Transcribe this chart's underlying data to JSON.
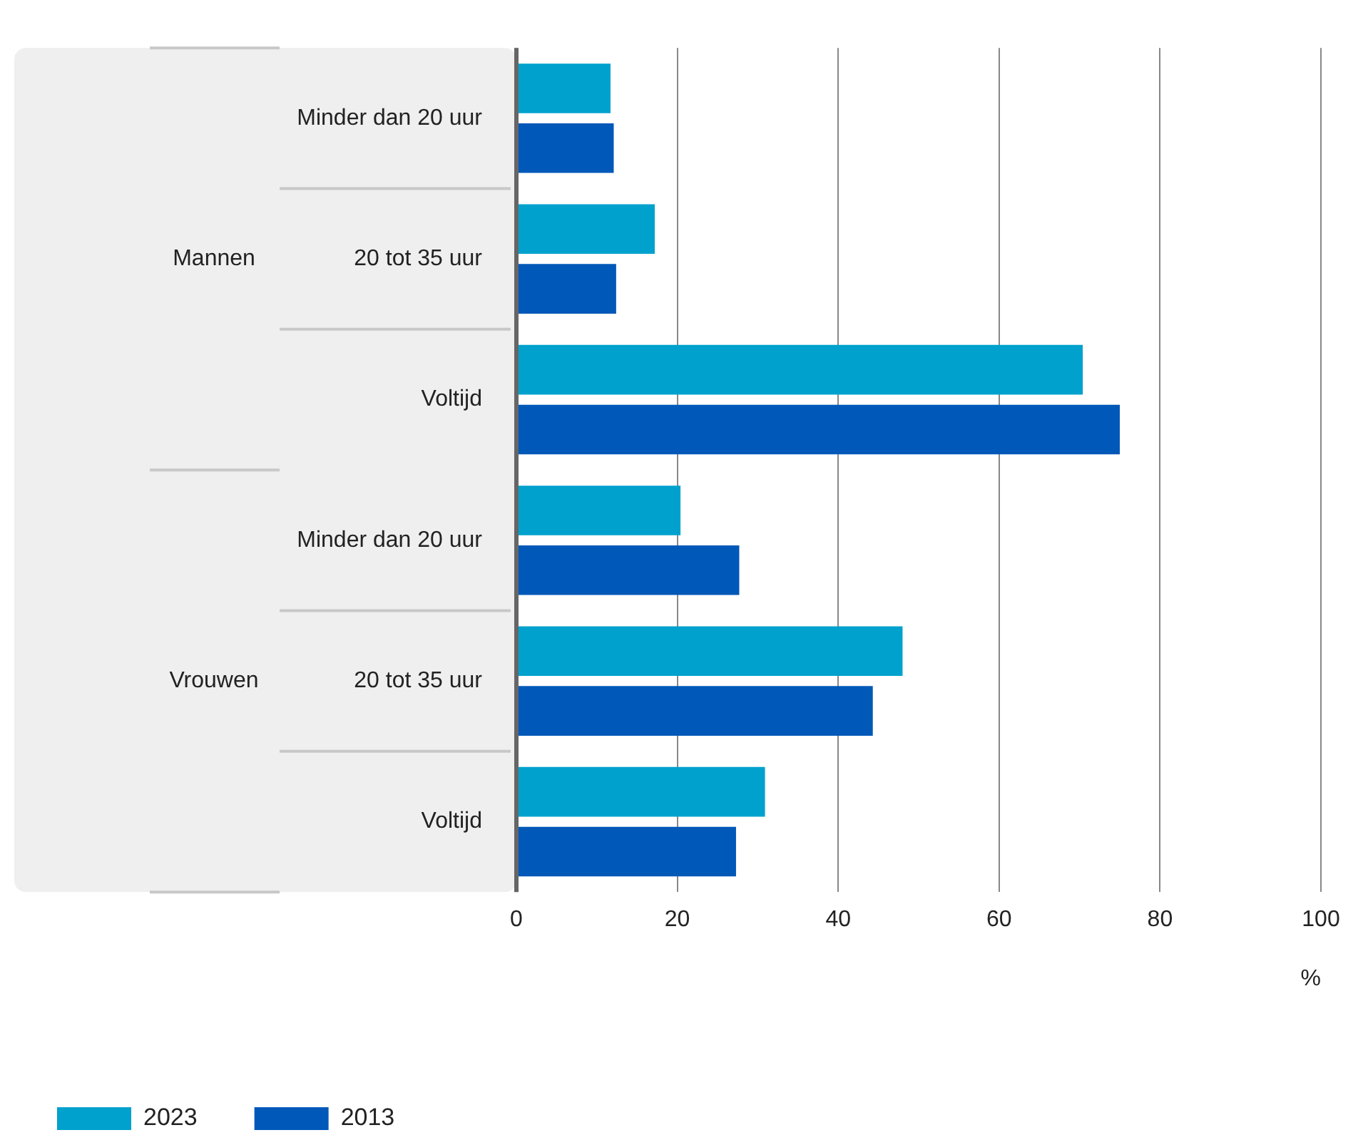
{
  "chart_data": {
    "type": "bar",
    "orientation": "horizontal",
    "categories": [
      "Minder dan 20 uur",
      "20 tot 35 uur",
      "Voltijd",
      "Minder dan 20 uur",
      "20 tot 35 uur",
      "Voltijd"
    ],
    "series": [
      {
        "name": "2023",
        "color": "#00a1cd",
        "values": [
          11.7,
          17.2,
          70.4,
          20.4,
          48.0,
          30.9
        ]
      },
      {
        "name": "2013",
        "color": "#0058b8",
        "values": [
          12.1,
          12.4,
          75.0,
          27.7,
          44.3,
          27.3
        ]
      }
    ],
    "annotations": [
      "Mannen",
      "Vrouwen"
    ],
    "xlabel": "%",
    "xlim": [
      0,
      100
    ],
    "xticks": [
      0,
      20,
      40,
      60,
      80,
      100
    ],
    "grid": "x",
    "legend": "bottom left"
  }
}
